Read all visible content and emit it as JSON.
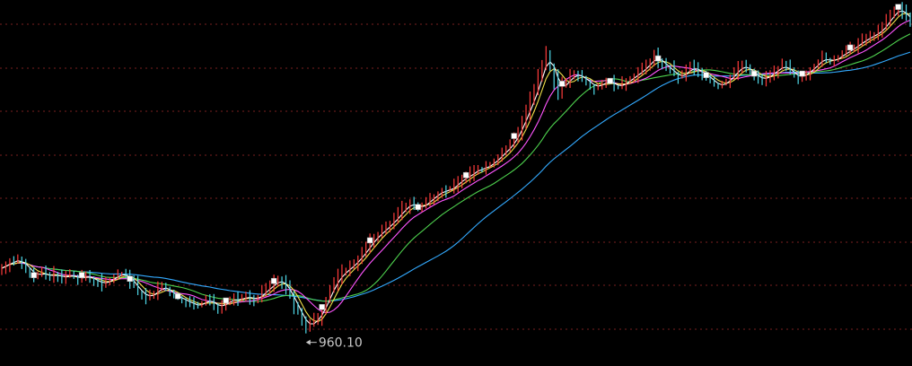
{
  "chart_data": {
    "type": "line",
    "subtype": "candlestick-with-moving-averages",
    "title": "",
    "xlabel": "",
    "ylabel": "",
    "ylim": [
      930,
      1420
    ],
    "grid": true,
    "grid_style": "dotted-horizontal",
    "colors": {
      "background": "#000000",
      "grid": "#7a1f1f",
      "up_candle": "#ff3b3b",
      "down_candle": "#4fd8e8",
      "ma_fast": "#ffffff",
      "ma_2": "#f2e24a",
      "ma_3": "#ff55ff",
      "ma_4": "#4ed24e",
      "ma_5": "#33aaff",
      "marker": "#ffffff",
      "label_text": "#c8c8c8"
    },
    "close_series": [
      1050,
      1055,
      1061,
      1058,
      1062,
      1057,
      1050,
      1046,
      1038,
      1042,
      1045,
      1040,
      1037,
      1043,
      1040,
      1035,
      1039,
      1042,
      1038,
      1034,
      1038,
      1040,
      1036,
      1033,
      1031,
      1028,
      1031,
      1035,
      1038,
      1041,
      1043,
      1039,
      1033,
      1026,
      1018,
      1014,
      1010,
      1012,
      1016,
      1022,
      1025,
      1021,
      1016,
      1012,
      1009,
      1007,
      1004,
      1001,
      1000,
      997,
      1002,
      1008,
      1004,
      999,
      996,
      1000,
      1003,
      1006,
      1008,
      1005,
      1009,
      1012,
      1008,
      1006,
      1011,
      1016,
      1021,
      1026,
      1030,
      1034,
      1030,
      1022,
      1012,
      1000,
      990,
      978,
      970,
      972,
      978,
      984,
      994,
      1008,
      1020,
      1030,
      1038,
      1044,
      1048,
      1052,
      1058,
      1064,
      1070,
      1078,
      1086,
      1092,
      1097,
      1102,
      1107,
      1112,
      1118,
      1124,
      1131,
      1136,
      1140,
      1137,
      1132,
      1136,
      1141,
      1146,
      1150,
      1154,
      1158,
      1156,
      1160,
      1164,
      1170,
      1174,
      1176,
      1180,
      1184,
      1188,
      1186,
      1191,
      1194,
      1198,
      1204,
      1210,
      1214,
      1220,
      1230,
      1240,
      1252,
      1266,
      1280,
      1292,
      1310,
      1330,
      1344,
      1330,
      1312,
      1296,
      1302,
      1308,
      1314,
      1318,
      1316,
      1312,
      1308,
      1303,
      1299,
      1302,
      1306,
      1308,
      1306,
      1302,
      1300,
      1304,
      1308,
      1312,
      1316,
      1320,
      1324,
      1330,
      1336,
      1342,
      1337,
      1332,
      1327,
      1323,
      1317,
      1313,
      1316,
      1322,
      1328,
      1325,
      1321,
      1318,
      1314,
      1310,
      1304,
      1301,
      1304,
      1308,
      1314,
      1320,
      1326,
      1330,
      1326,
      1320,
      1316,
      1312,
      1310,
      1314,
      1318,
      1322,
      1326,
      1330,
      1326,
      1320,
      1316,
      1312,
      1316,
      1320,
      1324,
      1330,
      1335,
      1340,
      1338,
      1334,
      1338,
      1342,
      1346,
      1349,
      1352,
      1356,
      1360,
      1364,
      1367,
      1370,
      1373,
      1376,
      1382,
      1390,
      1398,
      1404,
      1408,
      1403,
      1395,
      1392
    ],
    "annotations": [
      {
        "label": "960.10",
        "type": "low"
      }
    ]
  }
}
